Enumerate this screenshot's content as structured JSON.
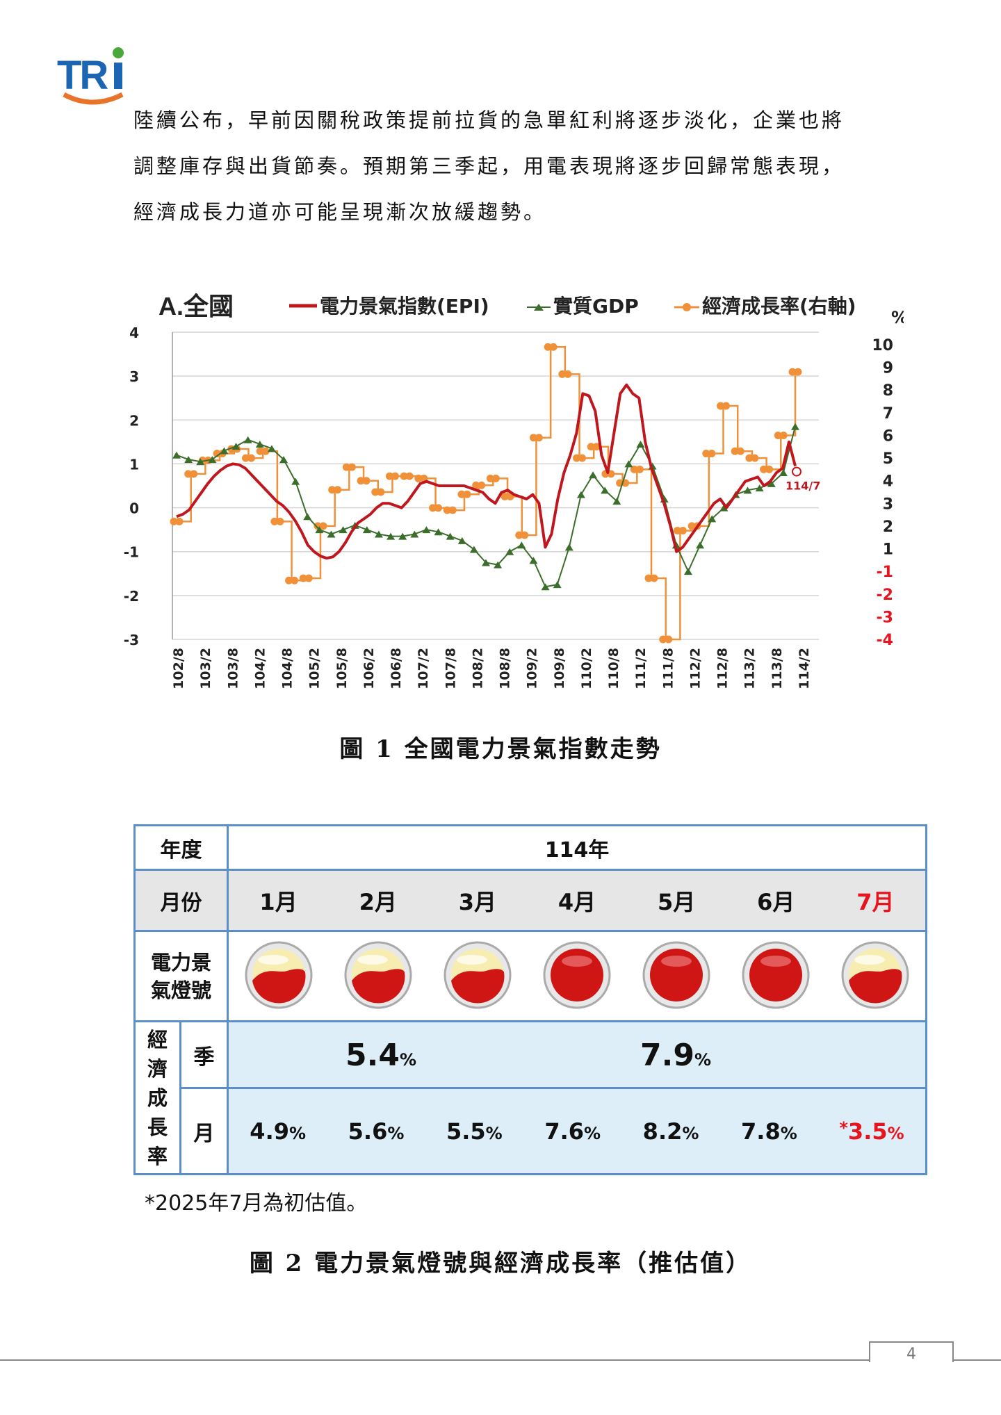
{
  "logo": {
    "text": "TRI",
    "colors": {
      "blue": "#1b65b3",
      "green": "#4aa83a",
      "orange": "#e8742a"
    }
  },
  "paragraph": [
    "陸續公布，早前因關稅政策提前拉貨的急單紅利將逐步淡化，企業也將",
    "調整庫存與出貨節奏。預期第三季起，用電表現將逐步回歸常態表現，",
    "經濟成長力道亦可能呈現漸次放緩趨勢。"
  ],
  "chart_data": {
    "type": "line",
    "title": "A.全國",
    "legend": [
      "電力景氣指數(EPI)",
      "實質GDP",
      "經濟成長率(右軸)"
    ],
    "colors": {
      "epi": "#c0161e",
      "gdp": "#3b6e2a",
      "growth": "#f0913a",
      "neg": "#e8141d"
    },
    "left_axis": {
      "ticks": [
        "4",
        "3",
        "2",
        "1",
        "0",
        "-1",
        "-2",
        "-3"
      ],
      "ylim": [
        -3,
        4
      ]
    },
    "right_axis": {
      "unit": "%",
      "ticks": [
        "10",
        "9",
        "8",
        "7",
        "6",
        "5",
        "4",
        "3",
        "2",
        "1",
        "-1",
        "-2",
        "-3",
        "-4"
      ]
    },
    "x_tick_labels": [
      "102/8",
      "103/2",
      "103/8",
      "104/2",
      "104/8",
      "105/2",
      "105/8",
      "106/2",
      "106/8",
      "107/2",
      "107/8",
      "108/2",
      "108/8",
      "109/2",
      "109/8",
      "110/2",
      "110/8",
      "111/2",
      "111/8",
      "112/2",
      "112/8",
      "113/2",
      "113/8",
      "114/2"
    ],
    "end_annotation": "114/7",
    "epi": [
      -0.2,
      -0.15,
      -0.05,
      0.15,
      0.35,
      0.55,
      0.72,
      0.85,
      0.95,
      1.0,
      0.98,
      0.9,
      0.75,
      0.6,
      0.45,
      0.3,
      0.15,
      0.05,
      -0.1,
      -0.3,
      -0.55,
      -0.85,
      -1.0,
      -1.1,
      -1.15,
      -1.12,
      -1.0,
      -0.8,
      -0.55,
      -0.35,
      -0.25,
      -0.15,
      0.0,
      0.1,
      0.1,
      0.05,
      0.0,
      0.15,
      0.35,
      0.55,
      0.6,
      0.55,
      0.5,
      0.5,
      0.5,
      0.5,
      0.5,
      0.45,
      0.4,
      0.35,
      0.2,
      0.1,
      0.35,
      0.4,
      0.3,
      0.25,
      0.2,
      0.3,
      0.1,
      -0.9,
      -0.6,
      0.2,
      0.8,
      1.2,
      1.7,
      2.6,
      2.55,
      2.2,
      1.2,
      0.8,
      1.7,
      2.6,
      2.8,
      2.6,
      2.5,
      1.5,
      0.9,
      0.5,
      0.1,
      -0.4,
      -1.0,
      -0.9,
      -0.7,
      -0.5,
      -0.3,
      -0.1,
      0.1,
      0.2,
      0.0,
      0.2,
      0.4,
      0.6,
      0.65,
      0.7,
      0.5,
      0.6,
      0.8,
      0.9,
      1.5,
      0.95
    ],
    "gdp": [
      1.2,
      1.1,
      1.05,
      1.1,
      1.3,
      1.4,
      1.55,
      1.45,
      1.35,
      1.1,
      0.6,
      -0.2,
      -0.5,
      -0.6,
      -0.5,
      -0.4,
      -0.5,
      -0.6,
      -0.65,
      -0.65,
      -0.6,
      -0.5,
      -0.55,
      -0.65,
      -0.75,
      -0.95,
      -1.25,
      -1.3,
      -1.0,
      -0.85,
      -1.2,
      -1.8,
      -1.75,
      -0.9,
      0.3,
      0.75,
      0.4,
      0.15,
      1.0,
      1.45,
      0.95,
      0.2,
      -0.85,
      -1.45,
      -0.85,
      -0.25,
      0.0,
      0.3,
      0.4,
      0.45,
      0.55,
      0.8,
      1.85
    ],
    "growth": [
      2.2,
      4.3,
      4.9,
      5.2,
      5.4,
      5.0,
      5.3,
      2.2,
      -1.4,
      -1.3,
      2.0,
      3.6,
      4.6,
      4.0,
      3.5,
      4.2,
      4.2,
      4.1,
      2.8,
      2.7,
      3.4,
      3.8,
      4.1,
      3.3,
      1.6,
      5.9,
      9.9,
      8.7,
      5.0,
      5.5,
      4.3,
      3.9,
      4.5,
      -1.3,
      -4.0,
      1.8,
      2.0,
      5.2,
      7.3,
      5.3,
      5.0,
      4.5,
      6.0,
      8.8
    ]
  },
  "captions": {
    "fig1": "圖 1  全國電力景氣指數走勢",
    "fig2": "圖 2  電力景氣燈號與經濟成長率（推估值）"
  },
  "table": {
    "year_label": "年度",
    "year_value": "114年",
    "month_label": "月份",
    "months": [
      "1月",
      "2月",
      "3月",
      "4月",
      "5月",
      "6月",
      "7月"
    ],
    "light_label": "電力景氣燈號",
    "lights": [
      "yellow-red",
      "yellow-red",
      "yellow-red",
      "red",
      "red",
      "red",
      "yellow-red"
    ],
    "growth_label": "經濟成長率",
    "quarter_label": "季",
    "quarter_values": [
      "5.4",
      "7.9"
    ],
    "month_row_label": "月",
    "month_values": [
      "4.9",
      "5.6",
      "5.5",
      "7.6",
      "8.2",
      "7.8",
      "3.5"
    ],
    "pct": "%",
    "star": "*"
  },
  "note": "*2025年7月為初估值。",
  "page_number": "4"
}
